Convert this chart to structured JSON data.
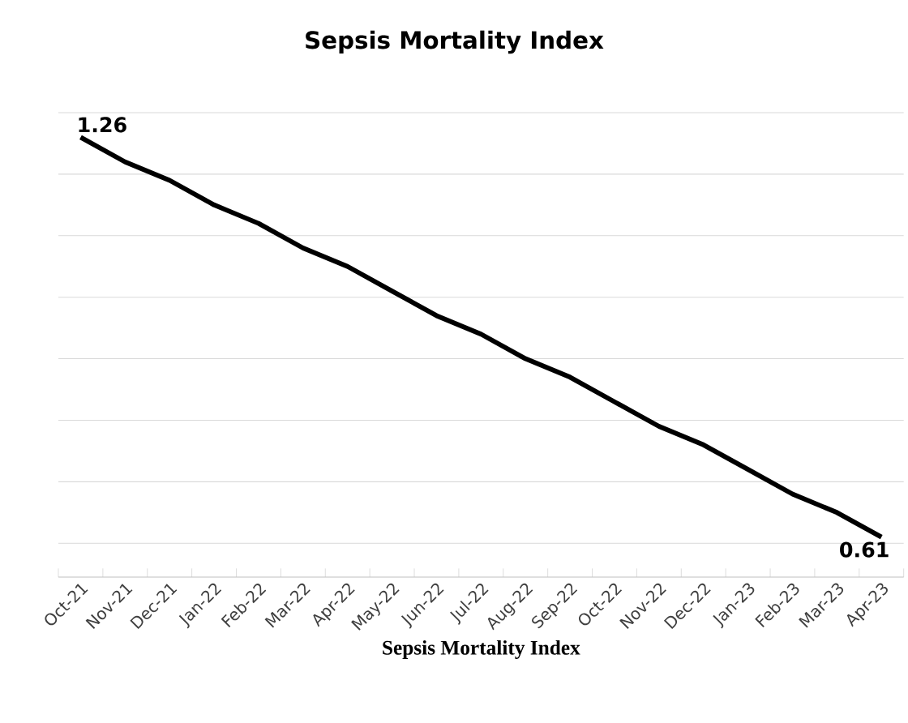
{
  "chart_data": {
    "type": "line",
    "title": "Sepsis Mortality Index",
    "xlabel": "Sepsis Mortality Index",
    "categories": [
      "Oct-21",
      "Nov-21",
      "Dec-21",
      "Jan-22",
      "Feb-22",
      "Mar-22",
      "Apr-22",
      "May-22",
      "Jun-22",
      "Jul-22",
      "Aug-22",
      "Sep-22",
      "Oct-22",
      "Nov-22",
      "Dec-22",
      "Jan-23",
      "Feb-23",
      "Mar-23",
      "Apr-23"
    ],
    "series": [
      {
        "color": "#000000",
        "values": [
          1.26,
          1.22,
          1.19,
          1.15,
          1.12,
          1.08,
          1.05,
          1.01,
          0.97,
          0.94,
          0.9,
          0.87,
          0.83,
          0.79,
          0.76,
          0.72,
          0.68,
          0.65,
          0.61
        ],
        "value_labels": [
          "1.26",
          null,
          null,
          null,
          null,
          null,
          null,
          null,
          null,
          null,
          null,
          null,
          null,
          null,
          null,
          null,
          null,
          null,
          "0.61"
        ]
      }
    ],
    "grid": "y",
    "legend": false,
    "marker": "none",
    "line_style": "solid",
    "tick_labels": "x"
  }
}
